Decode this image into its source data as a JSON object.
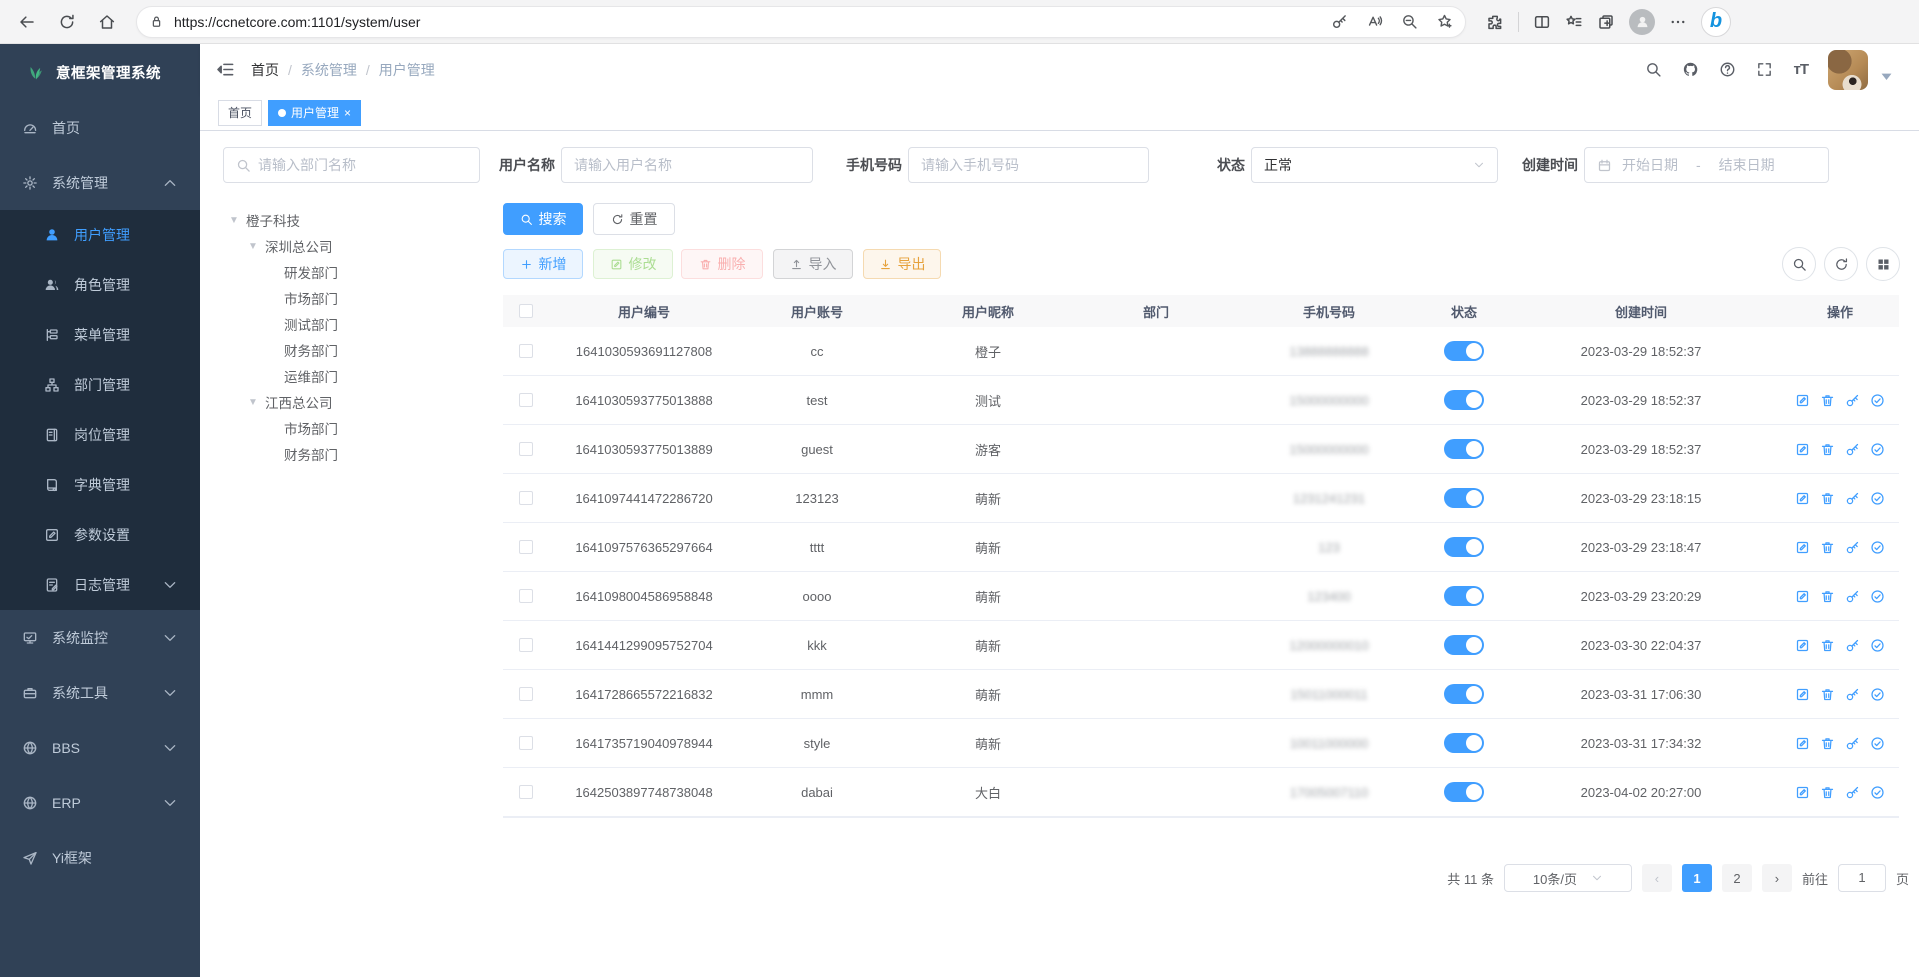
{
  "colors": {
    "accent": "#409eff",
    "sidebar_bg": "#304156",
    "submenu_bg": "#1f2d3d",
    "sidebar_text": "#bfcbd9",
    "success": "#67c23a",
    "danger": "#f56c6c",
    "warning": "#e6a23c",
    "info": "#909399"
  },
  "browser": {
    "url": "https://ccnetcore.com:1101/system/user"
  },
  "sidebar": {
    "logo": "意框架管理系统",
    "menu": [
      {
        "label": "首页",
        "icon": "dashboard-icon"
      },
      {
        "label": "系统管理",
        "icon": "gear-icon",
        "expanded": true,
        "children": [
          {
            "label": "用户管理",
            "icon": "user-icon",
            "active": true
          },
          {
            "label": "角色管理",
            "icon": "users-icon"
          },
          {
            "label": "菜单管理",
            "icon": "menu-tree-icon"
          },
          {
            "label": "部门管理",
            "icon": "org-icon"
          },
          {
            "label": "岗位管理",
            "icon": "badge-icon"
          },
          {
            "label": "字典管理",
            "icon": "book-icon"
          },
          {
            "label": "参数设置",
            "icon": "edit-icon"
          },
          {
            "label": "日志管理",
            "icon": "log-icon",
            "chevron": "down"
          }
        ]
      },
      {
        "label": "系统监控",
        "icon": "monitor-icon",
        "chevron": "down"
      },
      {
        "label": "系统工具",
        "icon": "toolbox-icon",
        "chevron": "down"
      },
      {
        "label": "BBS",
        "icon": "globe-icon",
        "chevron": "down"
      },
      {
        "label": "ERP",
        "icon": "globe-icon",
        "chevron": "down"
      },
      {
        "label": "Yi框架",
        "icon": "send-icon"
      }
    ]
  },
  "header": {
    "breadcrumb": [
      "首页",
      "系统管理",
      "用户管理"
    ],
    "separator": "/"
  },
  "tabs": [
    {
      "label": "首页",
      "active": false
    },
    {
      "label": "用户管理",
      "active": true,
      "closable": true
    }
  ],
  "filters": {
    "dept_placeholder": "请输入部门名称",
    "username_label": "用户名称",
    "username_placeholder": "请输入用户名称",
    "phone_label": "手机号码",
    "phone_placeholder": "请输入手机号码",
    "status_label": "状态",
    "status_value": "正常",
    "created_label": "创建时间",
    "date_start_placeholder": "开始日期",
    "date_separator": "-",
    "date_end_placeholder": "结束日期"
  },
  "actions": {
    "search": "搜索",
    "reset": "重置",
    "add": "新增",
    "edit": "修改",
    "delete": "删除",
    "import": "导入",
    "export": "导出"
  },
  "tree": [
    {
      "label": "橙子科技",
      "children": [
        {
          "label": "深圳总公司",
          "children": [
            {
              "label": "研发部门"
            },
            {
              "label": "市场部门"
            },
            {
              "label": "测试部门"
            },
            {
              "label": "财务部门"
            },
            {
              "label": "运维部门"
            }
          ]
        },
        {
          "label": "江西总公司",
          "children": [
            {
              "label": "市场部门"
            },
            {
              "label": "财务部门"
            }
          ]
        }
      ]
    }
  ],
  "table": {
    "headers": [
      "用户编号",
      "用户账号",
      "用户昵称",
      "部门",
      "手机号码",
      "状态",
      "创建时间",
      "操作"
    ],
    "rows": [
      {
        "id": "1641030593691127808",
        "account": "cc",
        "nickname": "橙子",
        "dept": "",
        "phone": "13888888888",
        "phone_redacted": true,
        "status": true,
        "created": "2023-03-29 18:52:37",
        "actions": false
      },
      {
        "id": "1641030593775013888",
        "account": "test",
        "nickname": "测试",
        "dept": "",
        "phone": "15000000000",
        "phone_redacted": true,
        "status": true,
        "created": "2023-03-29 18:52:37",
        "actions": true
      },
      {
        "id": "1641030593775013889",
        "account": "guest",
        "nickname": "游客",
        "dept": "",
        "phone": "15000000000",
        "phone_redacted": true,
        "status": true,
        "created": "2023-03-29 18:52:37",
        "actions": true
      },
      {
        "id": "1641097441472286720",
        "account": "123123",
        "nickname": "萌新",
        "dept": "",
        "phone": "1231241231",
        "phone_redacted": true,
        "status": true,
        "created": "2023-03-29 23:18:15",
        "actions": true
      },
      {
        "id": "1641097576365297664",
        "account": "tttt",
        "nickname": "萌新",
        "dept": "",
        "phone": "123",
        "phone_redacted": true,
        "status": true,
        "created": "2023-03-29 23:18:47",
        "actions": true
      },
      {
        "id": "1641098004586958848",
        "account": "oooo",
        "nickname": "萌新",
        "dept": "",
        "phone": "123400",
        "phone_redacted": true,
        "status": true,
        "created": "2023-03-29 23:20:29",
        "actions": true
      },
      {
        "id": "1641441299095752704",
        "account": "kkk",
        "nickname": "萌新",
        "dept": "",
        "phone": "12000000010",
        "phone_redacted": true,
        "status": true,
        "created": "2023-03-30 22:04:37",
        "actions": true
      },
      {
        "id": "1641728665572216832",
        "account": "mmm",
        "nickname": "萌新",
        "dept": "",
        "phone": "15011000011",
        "phone_redacted": true,
        "status": true,
        "created": "2023-03-31 17:06:30",
        "actions": true
      },
      {
        "id": "1641735719040978944",
        "account": "style",
        "nickname": "萌新",
        "dept": "",
        "phone": "10011000000",
        "phone_redacted": true,
        "status": true,
        "created": "2023-03-31 17:34:32",
        "actions": true
      },
      {
        "id": "1642503897748738048",
        "account": "dabai",
        "nickname": "大白",
        "dept": "",
        "phone": "17005007110",
        "phone_redacted": true,
        "status": true,
        "created": "2023-04-02 20:27:00",
        "actions": true
      }
    ]
  },
  "pagination": {
    "total": "共 11 条",
    "page_size": "10条/页",
    "pages": [
      "1",
      "2"
    ],
    "active_page": "1",
    "goto_label": "前往",
    "goto_value": "1",
    "unit": "页"
  }
}
